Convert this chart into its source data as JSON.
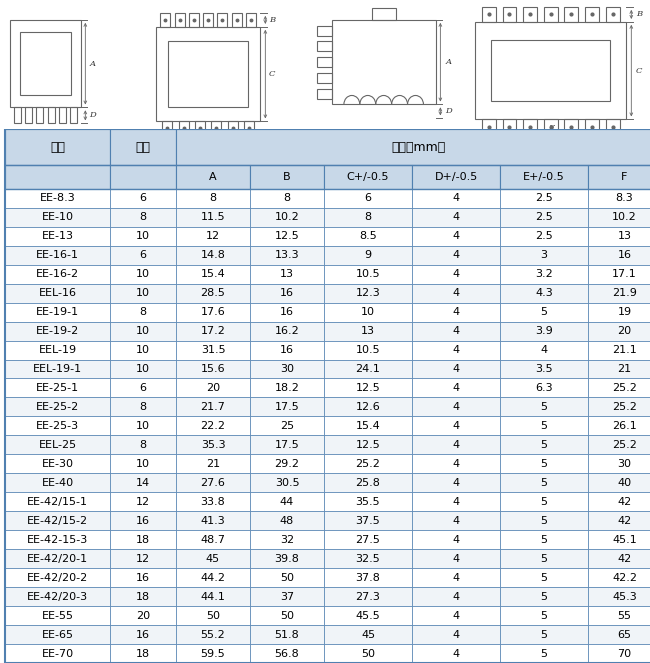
{
  "header_top": [
    "型号",
    "针数",
    "尺寸（mm）"
  ],
  "header_sub": [
    "A",
    "B",
    "C+/-0.5",
    "D+/-0.5",
    "E+/-0.5",
    "F"
  ],
  "rows": [
    [
      "EE-8.3",
      "6",
      "8",
      "8",
      "6",
      "4",
      "2.5",
      "8.3"
    ],
    [
      "EE-10",
      "8",
      "11.5",
      "10.2",
      "8",
      "4",
      "2.5",
      "10.2"
    ],
    [
      "EE-13",
      "10",
      "12",
      "12.5",
      "8.5",
      "4",
      "2.5",
      "13"
    ],
    [
      "EE-16-1",
      "6",
      "14.8",
      "13.3",
      "9",
      "4",
      "3",
      "16"
    ],
    [
      "EE-16-2",
      "10",
      "15.4",
      "13",
      "10.5",
      "4",
      "3.2",
      "17.1"
    ],
    [
      "EEL-16",
      "10",
      "28.5",
      "16",
      "12.3",
      "4",
      "4.3",
      "21.9"
    ],
    [
      "EE-19-1",
      "8",
      "17.6",
      "16",
      "10",
      "4",
      "5",
      "19"
    ],
    [
      "EE-19-2",
      "10",
      "17.2",
      "16.2",
      "13",
      "4",
      "3.9",
      "20"
    ],
    [
      "EEL-19",
      "10",
      "31.5",
      "16",
      "10.5",
      "4",
      "4",
      "21.1"
    ],
    [
      "EEL-19-1",
      "10",
      "15.6",
      "30",
      "24.1",
      "4",
      "3.5",
      "21"
    ],
    [
      "EE-25-1",
      "6",
      "20",
      "18.2",
      "12.5",
      "4",
      "6.3",
      "25.2"
    ],
    [
      "EE-25-2",
      "8",
      "21.7",
      "17.5",
      "12.6",
      "4",
      "5",
      "25.2"
    ],
    [
      "EE-25-3",
      "10",
      "22.2",
      "25",
      "15.4",
      "4",
      "5",
      "26.1"
    ],
    [
      "EEL-25",
      "8",
      "35.3",
      "17.5",
      "12.5",
      "4",
      "5",
      "25.2"
    ],
    [
      "EE-30",
      "10",
      "21",
      "29.2",
      "25.2",
      "4",
      "5",
      "30"
    ],
    [
      "EE-40",
      "14",
      "27.6",
      "30.5",
      "25.8",
      "4",
      "5",
      "40"
    ],
    [
      "EE-42/15-1",
      "12",
      "33.8",
      "44",
      "35.5",
      "4",
      "5",
      "42"
    ],
    [
      "EE-42/15-2",
      "16",
      "41.3",
      "48",
      "37.5",
      "4",
      "5",
      "42"
    ],
    [
      "EE-42-15-3",
      "18",
      "48.7",
      "32",
      "27.5",
      "4",
      "5",
      "45.1"
    ],
    [
      "EE-42/20-1",
      "12",
      "45",
      "39.8",
      "32.5",
      "4",
      "5",
      "42"
    ],
    [
      "EE-42/20-2",
      "16",
      "44.2",
      "50",
      "37.8",
      "4",
      "5",
      "42.2"
    ],
    [
      "EE-42/20-3",
      "18",
      "44.1",
      "37",
      "27.3",
      "4",
      "5",
      "45.3"
    ],
    [
      "EE-55",
      "20",
      "50",
      "50",
      "45.5",
      "4",
      "5",
      "55"
    ],
    [
      "EE-65",
      "16",
      "55.2",
      "51.8",
      "45",
      "4",
      "5",
      "65"
    ],
    [
      "EE-70",
      "18",
      "59.5",
      "56.8",
      "50",
      "4",
      "5",
      "70"
    ]
  ],
  "header_bg": "#c8d8e8",
  "border_color": "#5080b0",
  "lc": "#666666",
  "lw": 0.8
}
